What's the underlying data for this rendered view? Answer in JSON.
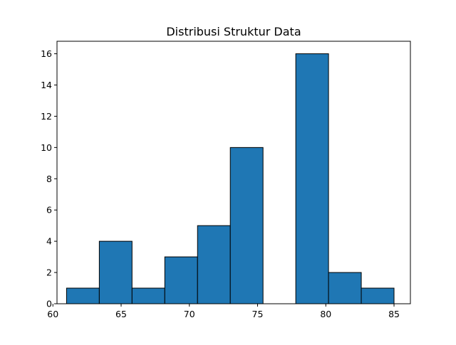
{
  "chart_data": {
    "type": "bar",
    "title": "Distribusi Struktur Data",
    "xlabel": "",
    "ylabel": "",
    "bin_edges": [
      61.0,
      63.4,
      65.8,
      68.2,
      70.6,
      73.0,
      75.4,
      77.8,
      80.2,
      82.6,
      85.0
    ],
    "values": [
      1,
      4,
      1,
      3,
      5,
      10,
      0,
      16,
      2,
      1
    ],
    "xlim": [
      60.3,
      86.2
    ],
    "ylim": [
      0,
      16.8
    ],
    "xticks": [
      60,
      65,
      70,
      75,
      80,
      85
    ],
    "yticks": [
      0,
      2,
      4,
      6,
      8,
      10,
      12,
      14,
      16
    ],
    "bar_color": "#1f77b4",
    "edge_color": "#000000",
    "grid": false
  }
}
